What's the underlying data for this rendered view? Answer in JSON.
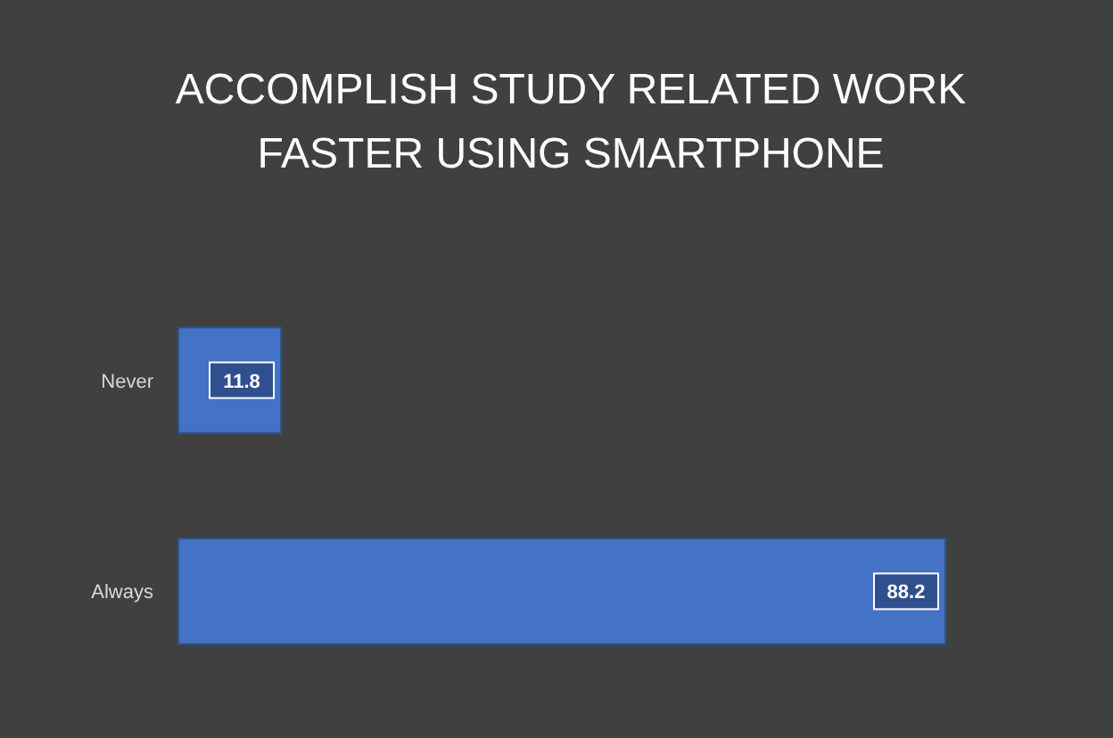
{
  "chart_data": {
    "type": "bar",
    "orientation": "horizontal",
    "title": "ACCOMPLISH STUDY RELATED WORK FASTER USING SMARTPHONE",
    "categories": [
      "Never",
      "Always"
    ],
    "values": [
      11.8,
      88.2
    ],
    "color": "#4472c4",
    "data_labels": true
  }
}
